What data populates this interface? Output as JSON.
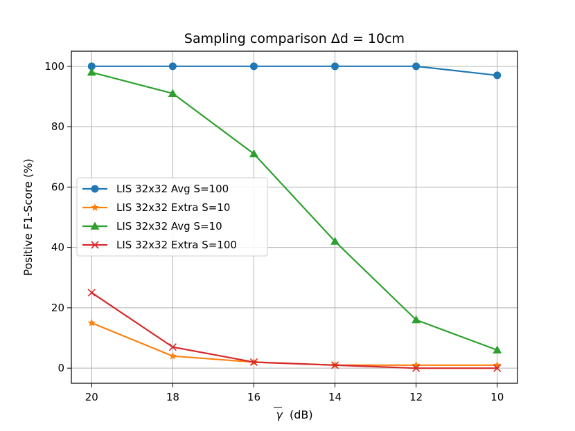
{
  "chart_data": {
    "type": "line",
    "title": "Sampling comparison Δd = 10cm",
    "xlabel_symbol": "γ",
    "xlabel_unit": "(dB)",
    "ylabel": "Positive F1-Score (%)",
    "x": [
      20,
      18,
      16,
      14,
      12,
      10
    ],
    "x_tick_labels": [
      "20",
      "18",
      "16",
      "14",
      "12",
      "10"
    ],
    "xlim": [
      20.5,
      9.5
    ],
    "ylim": [
      -5,
      105
    ],
    "y_ticks": [
      0,
      20,
      40,
      60,
      80,
      100
    ],
    "y_tick_labels": [
      "0",
      "20",
      "40",
      "60",
      "80",
      "100"
    ],
    "grid": true,
    "legend_position": "center-left",
    "series": [
      {
        "name": "LIS 32x32 Avg S=100",
        "color": "#1f77b4",
        "marker": "circle",
        "values": [
          100,
          100,
          100,
          100,
          100,
          97
        ]
      },
      {
        "name": "LIS 32x32 Extra S=10",
        "color": "#ff7f0e",
        "marker": "star",
        "values": [
          15,
          4,
          2,
          1,
          1,
          1
        ]
      },
      {
        "name": "LIS 32x32 Avg S=10",
        "color": "#2ca02c",
        "marker": "triangle",
        "values": [
          98,
          91,
          71,
          42,
          16,
          6
        ]
      },
      {
        "name": "LIS 32x32 Extra S=100",
        "color": "#d62728",
        "marker": "x",
        "values": [
          25,
          7,
          2,
          1,
          0,
          0
        ]
      }
    ]
  }
}
